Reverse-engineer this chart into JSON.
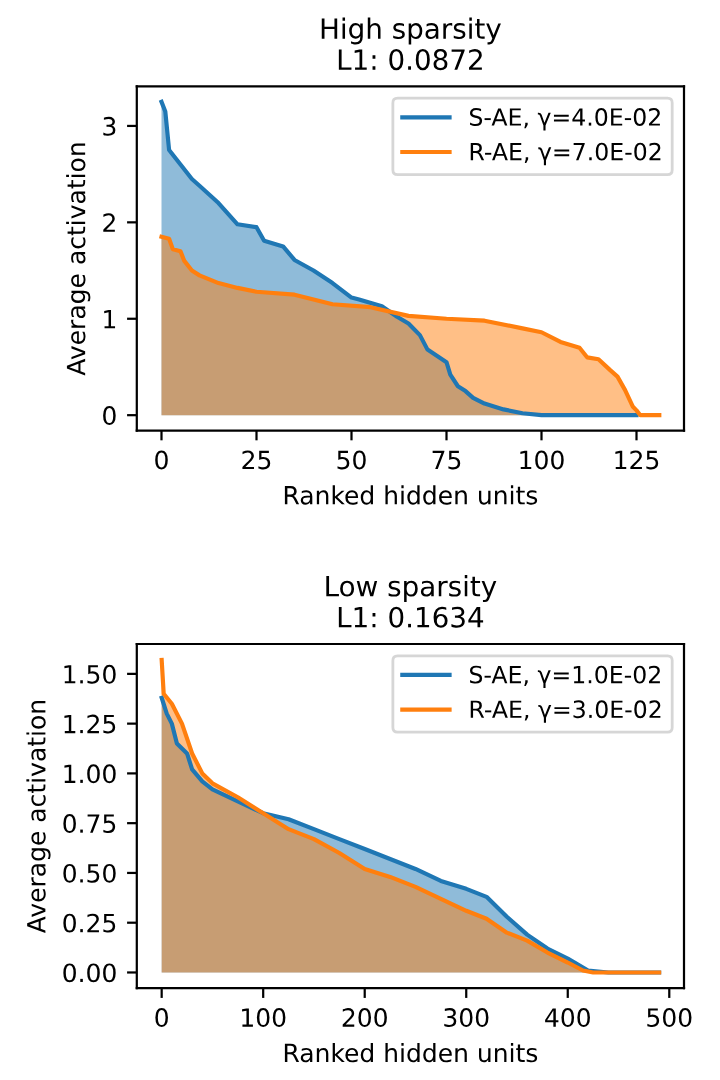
{
  "chart_data": [
    {
      "type": "area",
      "title": "High sparsity\nL1: 0.0872",
      "xlabel": "Ranked hidden units",
      "ylabel": "Average activation",
      "xlim": [
        -6.5,
        137.5
      ],
      "ylim": [
        -0.16,
        3.41
      ],
      "xticks": [
        0,
        25,
        50,
        75,
        100,
        125
      ],
      "yticks": [
        0,
        1,
        2,
        3
      ],
      "legend": "top right",
      "grid": false,
      "series": [
        {
          "name": "S-AE, γ=4.0E-02",
          "color": "#1f77b4",
          "x": [
            0,
            1,
            2,
            5,
            8,
            10,
            15,
            20,
            25,
            27,
            32,
            35,
            40,
            45,
            50,
            52,
            58,
            62,
            65,
            68,
            70,
            75,
            76,
            78,
            80,
            82,
            85,
            90,
            95,
            100,
            125
          ],
          "values": [
            3.25,
            3.15,
            2.75,
            2.6,
            2.45,
            2.38,
            2.2,
            1.98,
            1.95,
            1.81,
            1.75,
            1.61,
            1.5,
            1.37,
            1.22,
            1.2,
            1.13,
            1.02,
            0.95,
            0.83,
            0.68,
            0.55,
            0.42,
            0.3,
            0.25,
            0.18,
            0.12,
            0.06,
            0.02,
            0.0,
            0.0
          ]
        },
        {
          "name": "R-AE, γ=7.0E-02",
          "color": "#ff7f0e",
          "x": [
            0,
            2,
            3,
            5,
            6,
            8,
            10,
            15,
            20,
            25,
            35,
            40,
            45,
            55,
            65,
            75,
            85,
            95,
            100,
            105,
            110,
            112,
            115,
            118,
            120,
            122,
            124,
            125,
            126,
            131
          ],
          "values": [
            1.85,
            1.83,
            1.72,
            1.7,
            1.6,
            1.5,
            1.45,
            1.37,
            1.32,
            1.28,
            1.25,
            1.2,
            1.15,
            1.12,
            1.03,
            1.0,
            0.98,
            0.9,
            0.86,
            0.76,
            0.7,
            0.6,
            0.58,
            0.47,
            0.4,
            0.26,
            0.09,
            0.05,
            0.0,
            0.0
          ]
        }
      ]
    },
    {
      "type": "area",
      "title": "Low sparsity\nL1: 0.1634",
      "xlabel": "Ranked hidden units",
      "ylabel": "Average activation",
      "xlim": [
        -24.5,
        514.5
      ],
      "ylim": [
        -0.079,
        1.65
      ],
      "xticks": [
        0,
        100,
        200,
        300,
        400,
        500
      ],
      "yticks": [
        {
          "value": 0,
          "label": "0.00"
        },
        {
          "value": 0.25,
          "label": "0.25"
        },
        {
          "value": 0.5,
          "label": "0.50"
        },
        {
          "value": 0.75,
          "label": "0.75"
        },
        {
          "value": 1.0,
          "label": "1.00"
        },
        {
          "value": 1.25,
          "label": "1.25"
        },
        {
          "value": 1.5,
          "label": "1.50"
        }
      ],
      "legend": "top right",
      "grid": false,
      "series": [
        {
          "name": "S-AE, γ=1.0E-02",
          "color": "#1f77b4",
          "x": [
            0,
            5,
            10,
            15,
            25,
            30,
            40,
            50,
            75,
            100,
            125,
            150,
            175,
            200,
            225,
            250,
            275,
            300,
            320,
            340,
            360,
            380,
            400,
            420,
            440,
            490
          ],
          "values": [
            1.38,
            1.3,
            1.25,
            1.15,
            1.1,
            1.02,
            0.96,
            0.92,
            0.86,
            0.8,
            0.77,
            0.72,
            0.67,
            0.62,
            0.57,
            0.52,
            0.46,
            0.42,
            0.38,
            0.28,
            0.19,
            0.12,
            0.07,
            0.01,
            0.0,
            0.0
          ]
        },
        {
          "name": "R-AE, γ=3.0E-02",
          "color": "#ff7f0e",
          "x": [
            0,
            2,
            10,
            20,
            30,
            40,
            50,
            75,
            100,
            125,
            150,
            175,
            200,
            225,
            250,
            275,
            300,
            320,
            340,
            360,
            380,
            400,
            415,
            425,
            490
          ],
          "values": [
            1.57,
            1.4,
            1.35,
            1.25,
            1.1,
            1.0,
            0.95,
            0.88,
            0.8,
            0.72,
            0.67,
            0.6,
            0.52,
            0.48,
            0.43,
            0.37,
            0.31,
            0.27,
            0.2,
            0.16,
            0.1,
            0.05,
            0.01,
            0.0,
            0.0
          ]
        }
      ]
    }
  ]
}
